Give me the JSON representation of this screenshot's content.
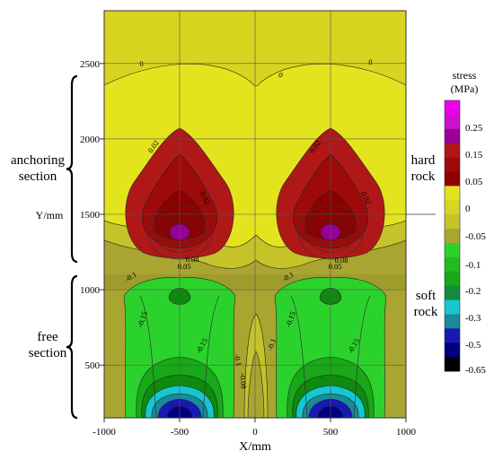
{
  "chart_data": {
    "type": "heatmap",
    "xlabel": "X/mm",
    "ylabel": "Y/mm",
    "xlim": [
      -1000,
      1000
    ],
    "ylim": [
      150,
      2850
    ],
    "x_ticks": [
      "-1000",
      "-500",
      "0",
      "500",
      "1000"
    ],
    "y_ticks": [
      "500",
      "1000",
      "1500",
      "2000",
      "2500"
    ],
    "grid": true,
    "legend_title_line1": "stress",
    "legend_title_line2": "(MPa)",
    "legend_levels": [
      {
        "label": "0.25",
        "color": "#cc11cc"
      },
      {
        "label": "0.15",
        "color": "#b01818"
      },
      {
        "label": "0.05",
        "color": "#8e0000"
      },
      {
        "label": "0",
        "color": "#e4e41e"
      },
      {
        "label": "-0.05",
        "color": "#c6c22a"
      },
      {
        "label": "-0.1",
        "color": "#2cd22c"
      },
      {
        "label": "-0.2",
        "color": "#18a818"
      },
      {
        "label": "-0.3",
        "color": "#16c6d0"
      },
      {
        "label": "-0.5",
        "color": "#1818b4"
      },
      {
        "label": "-0.65",
        "color": "#000000"
      }
    ],
    "legend_colors": [
      "#ee00ee",
      "#cc11cc",
      "#980098",
      "#b01818",
      "#9e0a0a",
      "#8e0000",
      "#e4e41e",
      "#d6d424",
      "#c6c22a",
      "#a8a630",
      "#2cd22c",
      "#22bc22",
      "#18a818",
      "#128a40",
      "#16c6d0",
      "#1a8a9a",
      "#1818b4",
      "#000080",
      "#000000"
    ],
    "fill_colors": {
      "top": "#d8d420",
      "zone": "#e4e41e",
      "lower": "#c6c22a",
      "band": "#a8a630",
      "green": "#2cd22c",
      "green2": "#18a818",
      "green3": "#0e8a0e",
      "cyan": "#16c6d0",
      "teal": "#1a8a9a",
      "blue": "#1818b4",
      "navy": "#000080",
      "red": "#b01818",
      "red2": "#9e0a0a",
      "red3": "#8e0000",
      "purple": "#980098"
    },
    "contour_labels": [
      "0",
      "0",
      "0",
      "0.02",
      "0.02",
      "0.02",
      "0.02",
      "0.05",
      "0.05",
      "0.08",
      "0.08",
      "-0.1",
      "-0.1",
      "-0.15",
      "-0.15",
      "-0.15",
      "-0.15",
      "-0.1",
      "-0.1",
      "-0.08"
    ]
  },
  "annotations": {
    "anchoring": [
      "anchoring",
      "section"
    ],
    "free": [
      "free",
      "section"
    ],
    "hard": [
      "hard",
      "rock"
    ],
    "soft": [
      "soft",
      "rock"
    ]
  }
}
